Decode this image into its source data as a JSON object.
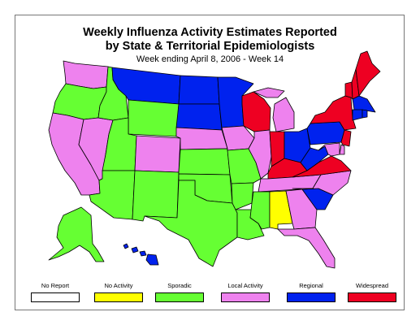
{
  "title_line1": "Weekly Influenza Activity Estimates Reported",
  "title_line2": "by State & Territorial Epidemiologists",
  "subtitle": "Week ending April 8, 2006 - Week 14",
  "colors": {
    "no_report": "#ffffff",
    "no_activity": "#ffff00",
    "sporadic": "#66ff33",
    "local": "#ee82ee",
    "regional": "#0022ee",
    "widespread": "#ee0022",
    "outline": "#000000"
  },
  "legend": [
    {
      "label": "No Report",
      "color": "#ffffff",
      "level": "no_report"
    },
    {
      "label": "No Activity",
      "color": "#ffff00",
      "level": "no_activity"
    },
    {
      "label": "Sporadic",
      "color": "#66ff33",
      "level": "sporadic"
    },
    {
      "label": "Local Activity",
      "color": "#ee82ee",
      "level": "local"
    },
    {
      "label": "Regional",
      "color": "#0022ee",
      "level": "regional"
    },
    {
      "label": "Widespread",
      "color": "#ee0022",
      "level": "widespread"
    }
  ],
  "states": {
    "WA": "local",
    "OR": "sporadic",
    "CA": "local",
    "NV": "local",
    "ID": "sporadic",
    "MT": "regional",
    "WY": "sporadic",
    "UT": "sporadic",
    "AZ": "sporadic",
    "CO": "local",
    "NM": "sporadic",
    "ND": "regional",
    "SD": "regional",
    "NE": "local",
    "KS": "sporadic",
    "OK": "sporadic",
    "TX": "sporadic",
    "MN": "regional",
    "IA": "local",
    "MO": "sporadic",
    "AR": "sporadic",
    "LA": "sporadic",
    "WI": "widespread",
    "IL": "local",
    "MI": "local",
    "IN": "widespread",
    "OH": "regional",
    "KY": "widespread",
    "TN": "local",
    "MS": "sporadic",
    "AL": "no_activity",
    "GA": "local",
    "FL": "local",
    "SC": "regional",
    "NC": "local",
    "VA": "widespread",
    "WV": "regional",
    "PA": "regional",
    "NY": "widespread",
    "VT": "widespread",
    "NH": "widespread",
    "ME": "widespread",
    "MA": "regional",
    "CT": "regional",
    "RI": "regional",
    "NJ": "widespread",
    "DE": "local",
    "MD": "local",
    "AK": "sporadic",
    "HI": "regional"
  }
}
